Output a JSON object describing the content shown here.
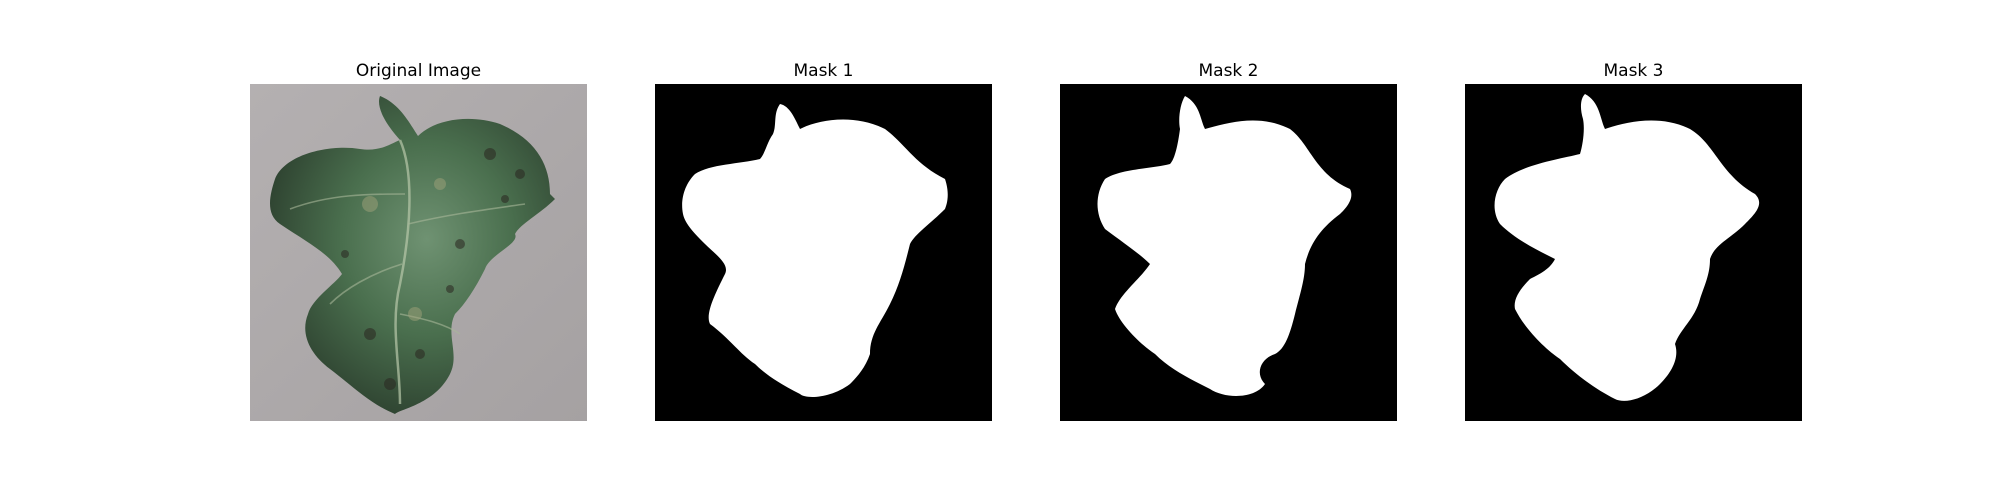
{
  "figure": {
    "panels": [
      {
        "title": "Original Image",
        "content": "photo of a diseased green leaf on a gray background"
      },
      {
        "title": "Mask 1",
        "content": "binary segmentation mask"
      },
      {
        "title": "Mask 2",
        "content": "binary segmentation mask"
      },
      {
        "title": "Mask 3",
        "content": "binary segmentation mask"
      }
    ]
  },
  "colors": {
    "mask_foreground": "#ffffff",
    "mask_background": "#000000",
    "photo_background": "#aca8a8",
    "leaf_dark": "#2f4a32",
    "leaf_mid": "#4d7a52",
    "leaf_light": "#7d9e80"
  }
}
